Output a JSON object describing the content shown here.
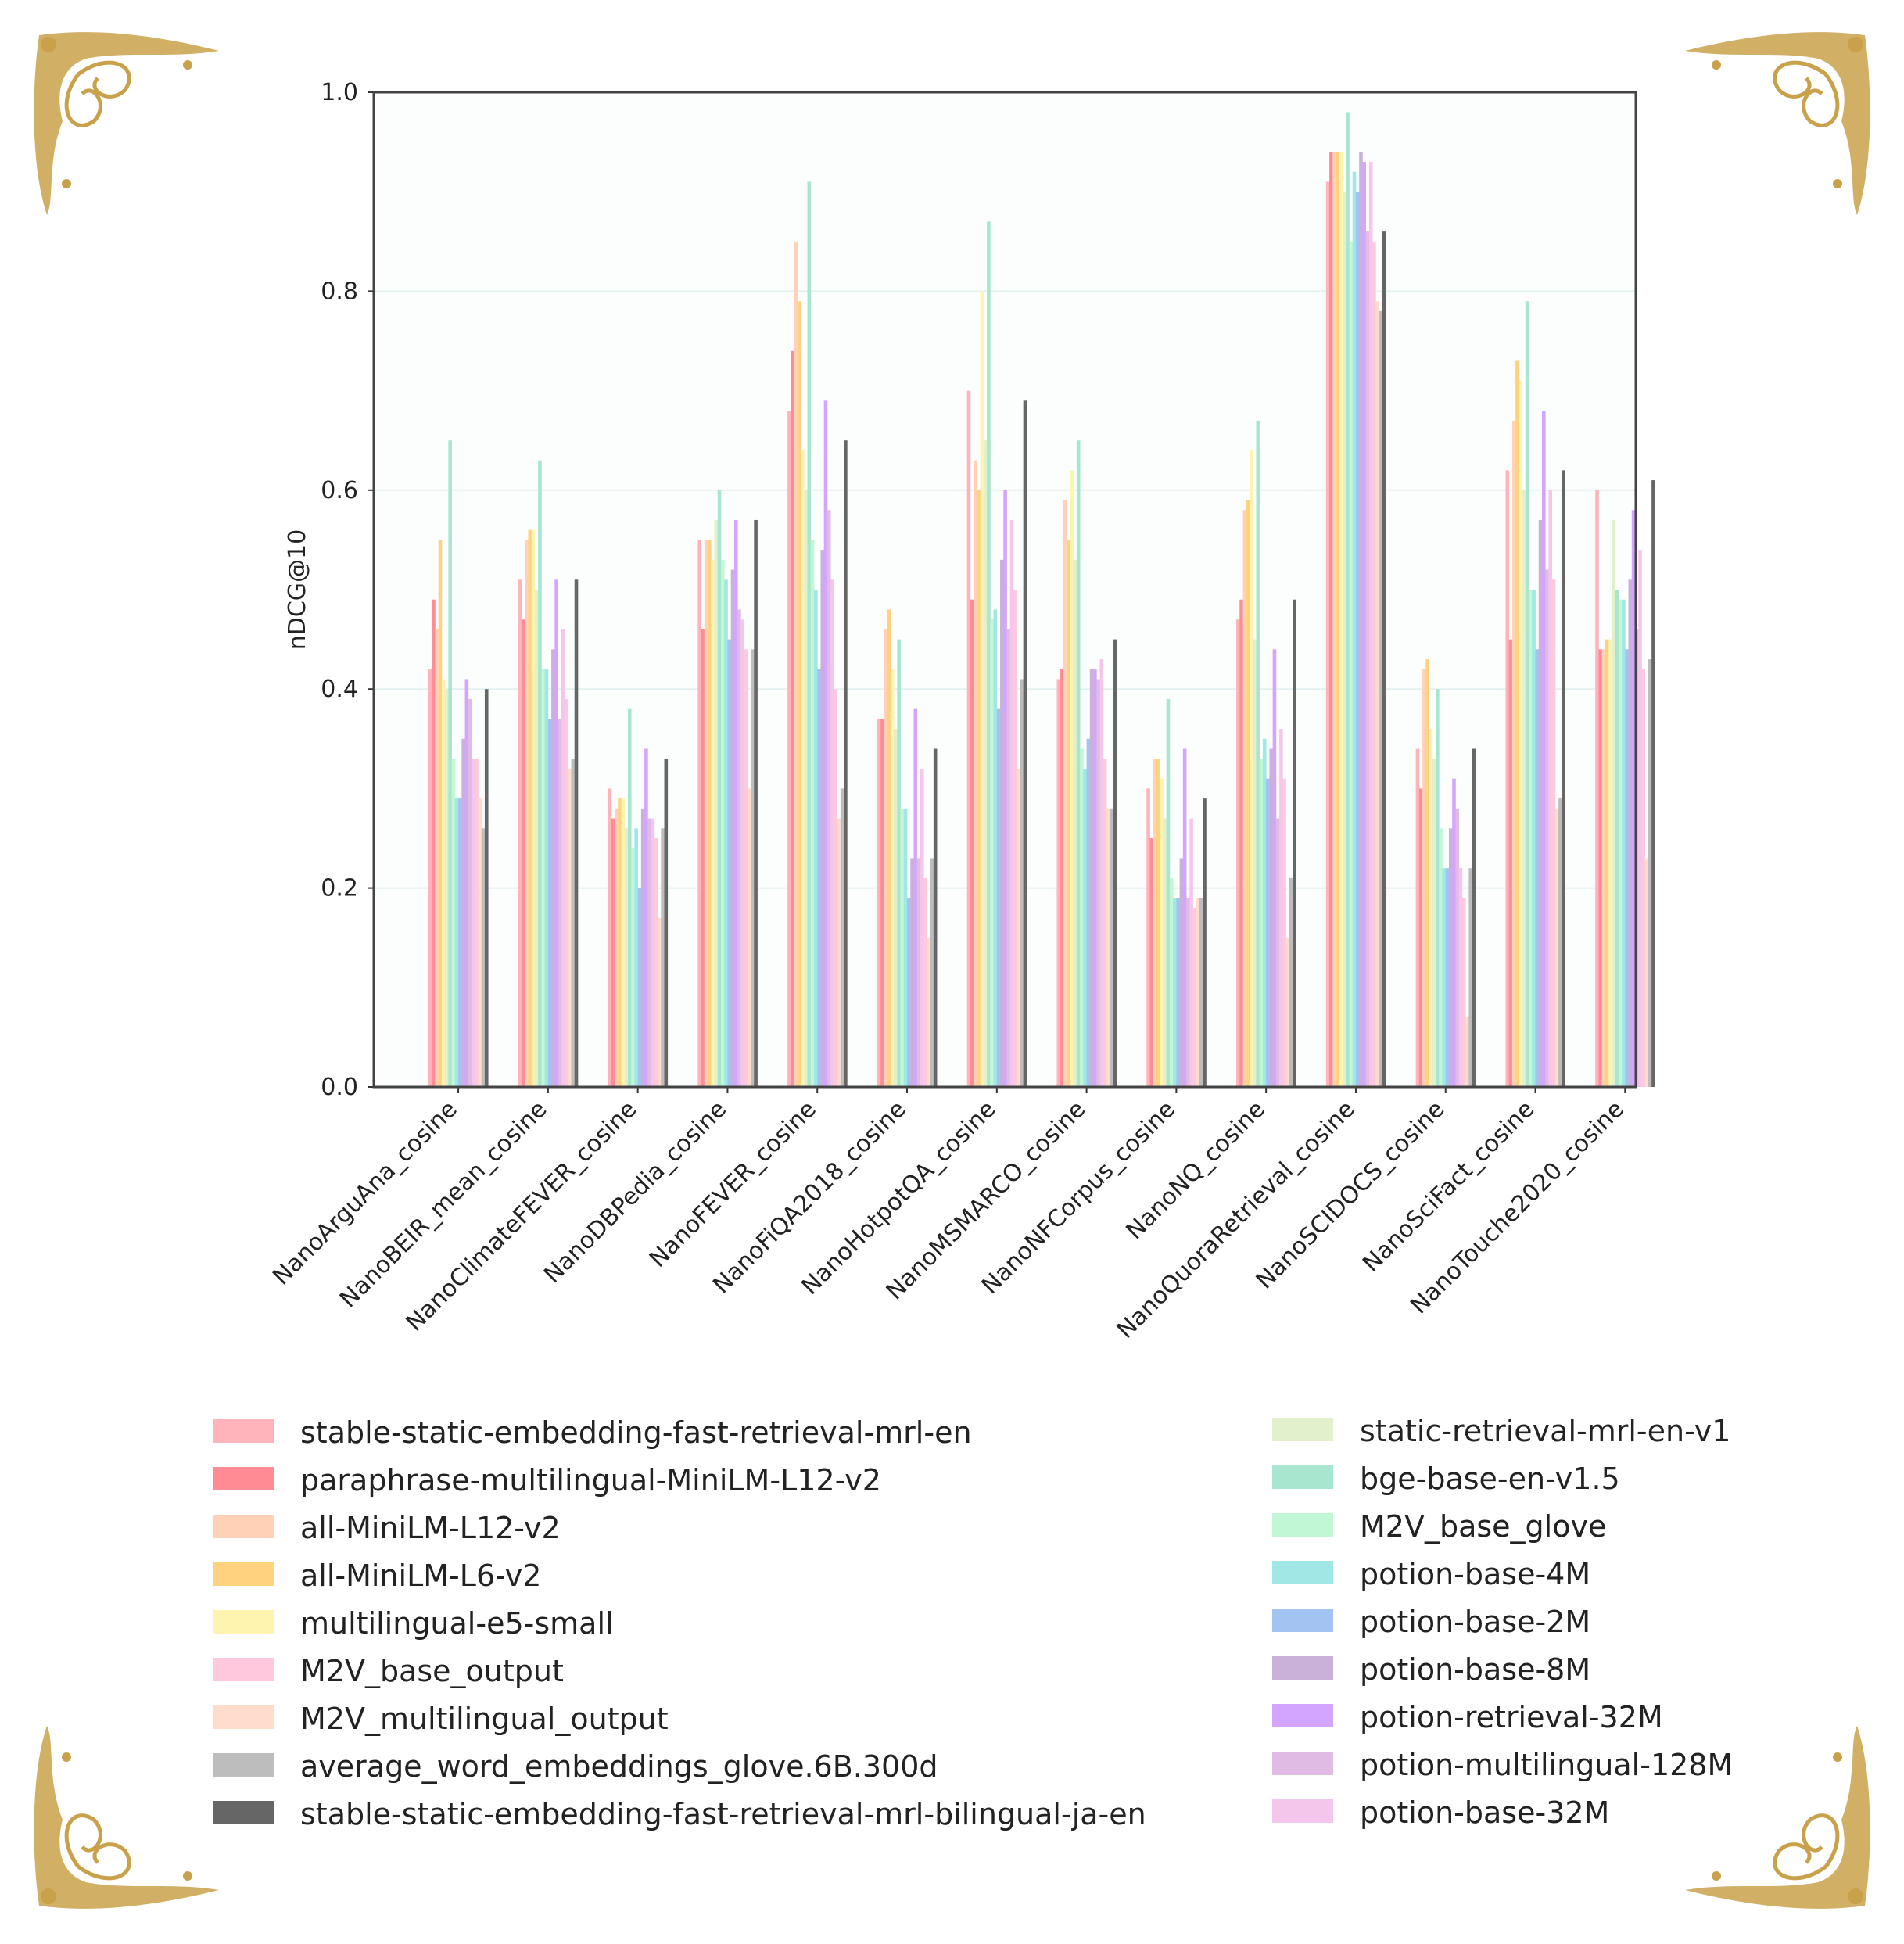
{
  "chart_data": {
    "type": "bar",
    "ylabel": "nDCG@10",
    "xlabel": "",
    "title": "",
    "ylim": [
      0,
      1.0
    ],
    "yticks": [
      0.0,
      0.2,
      0.4,
      0.6,
      0.8,
      1.0
    ],
    "ytick_labels": [
      "0.0",
      "0.2",
      "0.4",
      "0.6",
      "0.8",
      "1.0"
    ],
    "grid": "horizontal",
    "legend_placement": "below",
    "categories": [
      "NanoArguAna_cosine",
      "NanoBEIR_mean_cosine",
      "NanoClimateFEVER_cosine",
      "NanoDBPedia_cosine",
      "NanoFEVER_cosine",
      "NanoFiQA2018_cosine",
      "NanoHotpotQA_cosine",
      "NanoMSMARCO_cosine",
      "NanoNFCorpus_cosine",
      "NanoNQ_cosine",
      "NanoQuoraRetrieval_cosine",
      "NanoSCIDOCS_cosine",
      "NanoSciFact_cosine",
      "NanoTouche2020_cosine"
    ],
    "series": [
      {
        "name": "stable-static-embedding-fast-retrieval-mrl-en",
        "color": "#ffb3ba",
        "values": [
          0.42,
          0.51,
          0.3,
          0.55,
          0.68,
          0.37,
          0.7,
          0.41,
          0.3,
          0.47,
          0.91,
          0.34,
          0.62,
          0.6
        ]
      },
      {
        "name": "paraphrase-multilingual-MiniLM-L12-v2",
        "color": "#ff8c94",
        "values": [
          0.49,
          0.47,
          0.27,
          0.46,
          0.74,
          0.37,
          0.49,
          0.42,
          0.25,
          0.49,
          0.94,
          0.3,
          0.45,
          0.44
        ]
      },
      {
        "name": "all-MiniLM-L12-v2",
        "color": "#ffd2b8",
        "values": [
          0.46,
          0.55,
          0.28,
          0.55,
          0.85,
          0.46,
          0.63,
          0.59,
          0.33,
          0.58,
          0.94,
          0.42,
          0.67,
          0.44
        ]
      },
      {
        "name": "all-MiniLM-L6-v2",
        "color": "#ffd27f",
        "values": [
          0.55,
          0.56,
          0.29,
          0.55,
          0.79,
          0.48,
          0.6,
          0.55,
          0.33,
          0.59,
          0.94,
          0.43,
          0.73,
          0.45
        ]
      },
      {
        "name": "multilingual-e5-small",
        "color": "#fff3b0",
        "values": [
          0.41,
          0.56,
          0.29,
          0.53,
          0.64,
          0.42,
          0.8,
          0.62,
          0.31,
          0.64,
          0.94,
          0.36,
          0.71,
          0.45
        ]
      },
      {
        "name": "static-retrieval-mrl-en-v1",
        "color": "#e2f0cb",
        "values": [
          0.4,
          0.5,
          0.26,
          0.57,
          0.6,
          0.36,
          0.65,
          0.53,
          0.27,
          0.45,
          0.9,
          0.33,
          0.6,
          0.57
        ]
      },
      {
        "name": "bge-base-en-v1.5",
        "color": "#a8e6cf",
        "values": [
          0.65,
          0.63,
          0.38,
          0.6,
          0.91,
          0.45,
          0.87,
          0.65,
          0.39,
          0.67,
          0.98,
          0.4,
          0.79,
          0.5
        ]
      },
      {
        "name": "M2V_base_glove",
        "color": "#c1f7d5",
        "values": [
          0.33,
          0.42,
          0.24,
          0.53,
          0.55,
          0.28,
          0.47,
          0.34,
          0.21,
          0.33,
          0.85,
          0.26,
          0.5,
          0.49
        ]
      },
      {
        "name": "potion-base-4M",
        "color": "#a0e7e5",
        "values": [
          0.29,
          0.42,
          0.26,
          0.51,
          0.5,
          0.28,
          0.48,
          0.32,
          0.19,
          0.35,
          0.92,
          0.22,
          0.5,
          0.49
        ]
      },
      {
        "name": "potion-base-2M",
        "color": "#a3c4f3",
        "values": [
          0.29,
          0.37,
          0.2,
          0.45,
          0.42,
          0.19,
          0.38,
          0.35,
          0.19,
          0.31,
          0.9,
          0.22,
          0.44,
          0.44
        ]
      },
      {
        "name": "potion-base-8M",
        "color": "#c9b1d9",
        "values": [
          0.35,
          0.44,
          0.28,
          0.52,
          0.54,
          0.23,
          0.53,
          0.42,
          0.23,
          0.34,
          0.94,
          0.26,
          0.57,
          0.51
        ]
      },
      {
        "name": "potion-retrieval-32M",
        "color": "#d4a5ff",
        "values": [
          0.41,
          0.51,
          0.34,
          0.57,
          0.69,
          0.38,
          0.6,
          0.42,
          0.34,
          0.44,
          0.93,
          0.31,
          0.68,
          0.58
        ]
      },
      {
        "name": "potion-multilingual-128M",
        "color": "#e0bbe4",
        "values": [
          0.39,
          0.37,
          0.27,
          0.48,
          0.58,
          0.23,
          0.46,
          0.41,
          0.19,
          0.27,
          0.86,
          0.28,
          0.52,
          0.46
        ]
      },
      {
        "name": "potion-base-32M",
        "color": "#f5c6ec",
        "values": [
          0.33,
          0.46,
          0.27,
          0.47,
          0.51,
          0.32,
          0.57,
          0.43,
          0.27,
          0.36,
          0.93,
          0.22,
          0.6,
          0.54
        ]
      },
      {
        "name": "M2V_base_output",
        "color": "#ffc8dd",
        "values": [
          0.33,
          0.39,
          0.25,
          0.44,
          0.4,
          0.21,
          0.5,
          0.33,
          0.18,
          0.31,
          0.85,
          0.19,
          0.51,
          0.42
        ]
      },
      {
        "name": "M2V_multilingual_output",
        "color": "#ffdccc",
        "values": [
          0.29,
          0.32,
          0.17,
          0.3,
          0.27,
          0.15,
          0.32,
          0.28,
          0.19,
          0.15,
          0.79,
          0.07,
          0.28,
          0.23
        ]
      },
      {
        "name": "average_word_embeddings_glove.6B.300d",
        "color": "#bdbdbd",
        "values": [
          0.26,
          0.33,
          0.26,
          0.44,
          0.3,
          0.23,
          0.41,
          0.28,
          0.19,
          0.21,
          0.78,
          0.22,
          0.29,
          0.43
        ]
      },
      {
        "name": "stable-static-embedding-fast-retrieval-mrl-bilingual-ja-en",
        "color": "#666666",
        "values": [
          0.4,
          0.51,
          0.33,
          0.57,
          0.65,
          0.34,
          0.69,
          0.45,
          0.29,
          0.49,
          0.86,
          0.34,
          0.62,
          0.61
        ]
      }
    ],
    "legend_left": [
      "stable-static-embedding-fast-retrieval-mrl-en",
      "paraphrase-multilingual-MiniLM-L12-v2",
      "all-MiniLM-L12-v2",
      "all-MiniLM-L6-v2",
      "multilingual-e5-small",
      "M2V_base_output",
      "M2V_multilingual_output",
      "average_word_embeddings_glove.6B.300d",
      "stable-static-embedding-fast-retrieval-mrl-bilingual-ja-en"
    ],
    "legend_right": [
      "static-retrieval-mrl-en-v1",
      "bge-base-en-v1.5",
      "M2V_base_glove",
      "potion-base-4M",
      "potion-base-2M",
      "potion-base-8M",
      "potion-retrieval-32M",
      "potion-multilingual-128M",
      "potion-base-32M"
    ]
  },
  "decoration": {
    "frame_color": "#c9a14a",
    "corner_icon": "gold-flourish-corner"
  }
}
